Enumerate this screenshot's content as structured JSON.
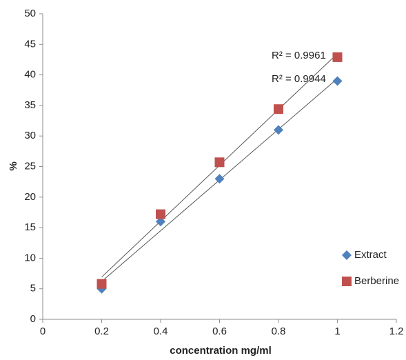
{
  "chart_data": {
    "type": "scatter",
    "x_label": "concentration mg/ml",
    "y_label": "%",
    "x": [
      0.2,
      0.4,
      0.6,
      0.8,
      1
    ],
    "series": [
      {
        "name": "Extract",
        "color": "#4f81bd",
        "marker": "diamond",
        "values": [
          5,
          16,
          23,
          31,
          39
        ]
      },
      {
        "name": "Berberine",
        "color": "#c0504d",
        "marker": "square",
        "values": [
          5.8,
          17.2,
          25.7,
          34.4,
          42.9
        ]
      }
    ],
    "annotations": [
      "R² = 0.9961",
      "R² = 0.9944"
    ],
    "trendline": true,
    "trendline_color": "#555555",
    "xlim": [
      0,
      1.2
    ],
    "xticks": [
      0,
      0.2,
      0.4,
      0.6,
      0.8,
      1,
      1.2
    ],
    "ylim": [
      0,
      50
    ],
    "yticks": [
      0,
      5,
      10,
      15,
      20,
      25,
      30,
      35,
      40,
      45,
      50
    ],
    "grid": false,
    "legend": "right"
  }
}
